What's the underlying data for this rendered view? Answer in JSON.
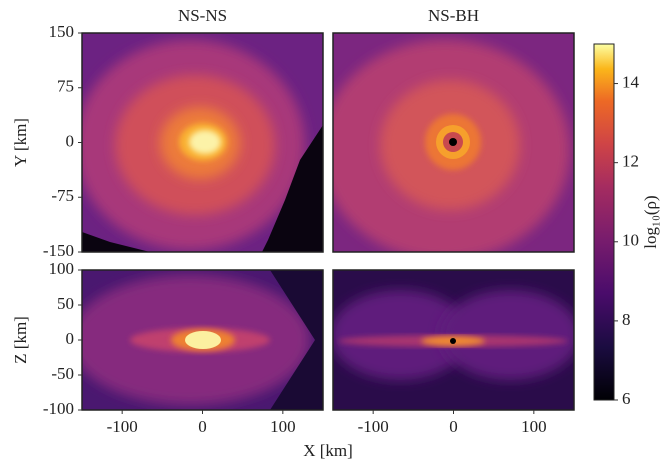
{
  "chart_data": [
    {
      "type": "heatmap",
      "title": "NS-NS",
      "ylabel": "Y [km]",
      "xlim": [
        -150,
        150
      ],
      "ylim": [
        -150,
        150
      ],
      "yticks": [
        -150,
        -75,
        0,
        75,
        150
      ]
    },
    {
      "type": "heatmap",
      "title": "NS-BH",
      "xlim": [
        -150,
        150
      ],
      "ylim": [
        -150,
        150
      ]
    },
    {
      "type": "heatmap",
      "xlabel": "X [km]",
      "ylabel": "Z [km]",
      "xlim": [
        -150,
        150
      ],
      "ylim": [
        -100,
        100
      ],
      "xticks": [
        -100,
        0,
        100
      ],
      "yticks": [
        -100,
        -50,
        0,
        50,
        100
      ]
    },
    {
      "type": "heatmap",
      "xlim": [
        -150,
        150
      ],
      "ylim": [
        -100,
        100
      ],
      "xticks": [
        -100,
        0,
        100
      ]
    },
    {
      "type": "colorbar",
      "label": "log₁₀(ρ)",
      "ylim": [
        6,
        15
      ],
      "yticks": [
        6,
        8,
        10,
        12,
        14
      ]
    }
  ]
}
